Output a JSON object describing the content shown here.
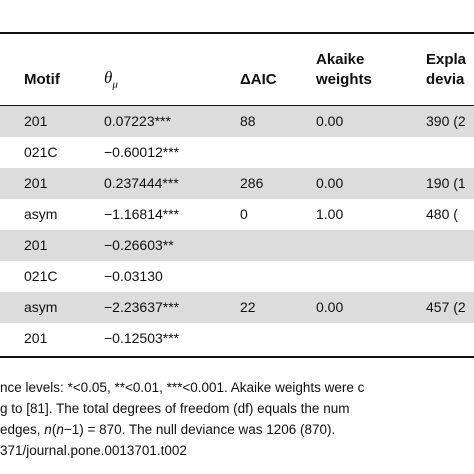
{
  "table": {
    "headers": {
      "motif": "Motif",
      "theta": "θ",
      "theta_sub": "μ",
      "delta_aic": "ΔAIC",
      "akaike_line1": "Akaike",
      "akaike_line2": "weights",
      "explained_line1": "Expla",
      "explained_line2": "devia"
    },
    "rows": [
      {
        "motif": "201",
        "theta": "0.07223***",
        "delta_aic": "88",
        "akaike": "0.00",
        "deviance": "390 (2",
        "shaded": true
      },
      {
        "motif": "021C",
        "theta": "−0.60012***",
        "delta_aic": "",
        "akaike": "",
        "deviance": "",
        "shaded": false
      },
      {
        "motif": "201",
        "theta": "0.237444***",
        "delta_aic": "286",
        "akaike": "0.00",
        "deviance": "190 (1",
        "shaded": true
      },
      {
        "motif": "asym",
        "theta": "−1.16814***",
        "delta_aic": "0",
        "akaike": "1.00",
        "deviance": "480 (",
        "shaded": false
      },
      {
        "motif": "201",
        "theta": "−0.26603**",
        "delta_aic": "",
        "akaike": "",
        "deviance": "",
        "shaded": true
      },
      {
        "motif": "021C",
        "theta": "−0.03130",
        "delta_aic": "",
        "akaike": "",
        "deviance": "",
        "shaded": false
      },
      {
        "motif": "asym",
        "theta": "−2.23637***",
        "delta_aic": "22",
        "akaike": "0.00",
        "deviance": "457 (2",
        "shaded": true
      },
      {
        "motif": "201",
        "theta": "−0.12503***",
        "delta_aic": "",
        "akaike": "",
        "deviance": "",
        "shaded": false
      }
    ]
  },
  "footnote": {
    "line1": "nce levels: *<0.05, **<0.01, ***<0.001. Akaike weights were c",
    "line2": "g to [81]. The total degrees of freedom (df) equals the num",
    "line3_pre": " edges, ",
    "line3_italic": "n",
    "line3_mid": "(",
    "line3_italic2": "n",
    "line3_post": "−1) = 870. The null deviance was 1206 (870).",
    "line4": "371/journal.pone.0013701.t002"
  }
}
